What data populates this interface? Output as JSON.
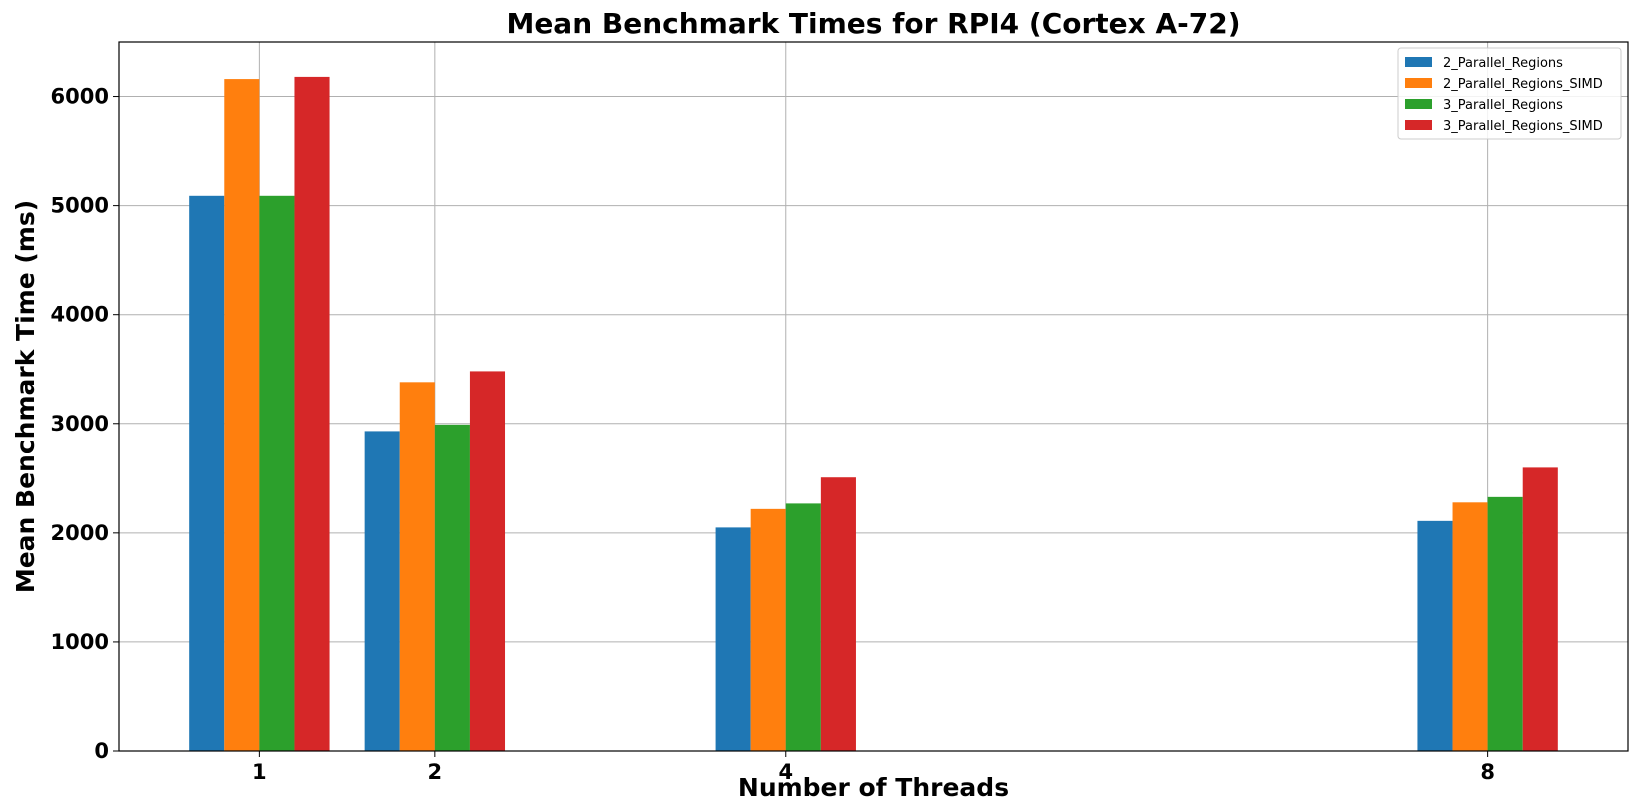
{
  "chart_data": {
    "type": "bar",
    "title": "Mean Benchmark Times for RPI4 (Cortex A-72)",
    "xlabel": "Number of Threads",
    "ylabel": "Mean Benchmark Time (ms)",
    "x": [
      1,
      2,
      4,
      8
    ],
    "xlim": [
      0.2,
      8.8
    ],
    "ylim": [
      0,
      6500
    ],
    "yticks": [
      0,
      1000,
      2000,
      3000,
      4000,
      5000,
      6000
    ],
    "grid": true,
    "legend_position": "top-right",
    "bar_width": 0.2,
    "series": [
      {
        "name": "2_Parallel_Regions",
        "color": "#1f77b4",
        "values": [
          5090,
          2930,
          2050,
          2110
        ]
      },
      {
        "name": "2_Parallel_Regions_SIMD",
        "color": "#ff7f0e",
        "values": [
          6160,
          3380,
          2220,
          2280
        ]
      },
      {
        "name": "3_Parallel_Regions",
        "color": "#2ca02c",
        "values": [
          5090,
          2990,
          2270,
          2330
        ]
      },
      {
        "name": "3_Parallel_Regions_SIMD",
        "color": "#d62728",
        "values": [
          6180,
          3480,
          2510,
          2600
        ]
      }
    ]
  }
}
